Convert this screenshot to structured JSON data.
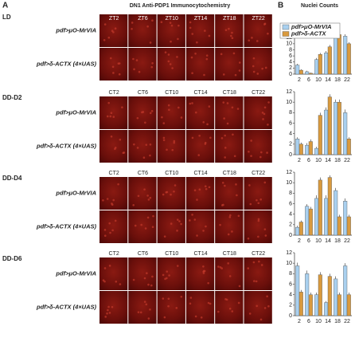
{
  "panel_a": {
    "label": "A",
    "title": "DN1 Anti-PDP1 Immunocytochemistry",
    "sections": [
      {
        "name": "LD",
        "times": [
          "ZT2",
          "ZT6",
          "ZT10",
          "ZT14",
          "ZT18",
          "ZT22"
        ],
        "rows": [
          "pdf>μO-MrVIA",
          "pdf>δ-ACTX (4×UAS)"
        ]
      },
      {
        "name": "DD-D2",
        "times": [
          "CT2",
          "CT6",
          "CT10",
          "CT14",
          "CT18",
          "CT22"
        ],
        "rows": [
          "pdf>μO-MrVIA",
          "pdf>δ-ACTX (4×UAS)"
        ]
      },
      {
        "name": "DD-D4",
        "times": [
          "CT2",
          "CT6",
          "CT10",
          "CT14",
          "CT18",
          "CT22"
        ],
        "rows": [
          "pdf>μO-MrVIA",
          "pdf>δ-ACTX (4×UAS)"
        ]
      },
      {
        "name": "DD-D6",
        "times": [
          "CT2",
          "CT6",
          "CT10",
          "CT14",
          "CT18",
          "CT22"
        ],
        "rows": [
          "pdf>μO-MrVIA",
          "pdf>δ-ACTX (4×UAS)"
        ]
      }
    ]
  },
  "panel_b": {
    "label": "B",
    "title": "Nuclei Counts"
  },
  "chart_data": [
    {
      "type": "bar",
      "categories": [
        "2",
        "6",
        "10",
        "14",
        "18",
        "22"
      ],
      "ylim": [
        0,
        16
      ],
      "yticks": [
        0,
        2,
        4,
        6,
        8,
        10,
        12,
        14,
        16
      ],
      "legend": "top-left",
      "series": [
        {
          "name": "pdf>μO-MrVIA",
          "color": "#a9d0ef",
          "values": [
            3,
            0.8,
            4.8,
            7,
            14,
            12.5
          ],
          "errors": [
            0.4,
            0.3,
            0.5,
            0.6,
            0.5,
            0.6
          ]
        },
        {
          "name": "pdf>δ-ACTX",
          "color": "#d99a3e",
          "values": [
            1.3,
            0.3,
            6.5,
            9,
            13,
            10
          ],
          "errors": [
            0.3,
            0.2,
            0.5,
            0.6,
            0.6,
            0.5
          ]
        }
      ]
    },
    {
      "type": "bar",
      "categories": [
        "2",
        "6",
        "10",
        "14",
        "18",
        "22"
      ],
      "ylim": [
        0,
        12
      ],
      "yticks": [
        0,
        2,
        4,
        6,
        8,
        10,
        12
      ],
      "series": [
        {
          "color": "#a9d0ef",
          "values": [
            3,
            1.8,
            1.2,
            8.5,
            10,
            8
          ],
          "errors": [
            0.3,
            0.4,
            0.3,
            0.5,
            0.5,
            0.6
          ]
        },
        {
          "color": "#d99a3e",
          "values": [
            2,
            2.5,
            7.5,
            11,
            10,
            3
          ],
          "errors": [
            0.3,
            0.4,
            0.5,
            0.5,
            0.5,
            0.3
          ]
        }
      ]
    },
    {
      "type": "bar",
      "categories": [
        "2",
        "6",
        "10",
        "14",
        "18",
        "22"
      ],
      "ylim": [
        0,
        12
      ],
      "yticks": [
        0,
        2,
        4,
        6,
        8,
        10,
        12
      ],
      "series": [
        {
          "color": "#a9d0ef",
          "values": [
            1.5,
            5.5,
            7,
            7,
            8.5,
            6.5
          ],
          "errors": [
            0.3,
            0.4,
            0.6,
            0.6,
            0.5,
            0.5
          ]
        },
        {
          "color": "#d99a3e",
          "values": [
            2.5,
            5,
            10.5,
            11,
            3.5,
            3.5
          ],
          "errors": [
            0.3,
            0.4,
            0.5,
            0.4,
            0.4,
            0.4
          ]
        }
      ]
    },
    {
      "type": "bar",
      "categories": [
        "2",
        "6",
        "10",
        "14",
        "18",
        "22"
      ],
      "ylim": [
        0,
        12
      ],
      "yticks": [
        0,
        2,
        4,
        6,
        8,
        10,
        12
      ],
      "series": [
        {
          "color": "#a9d0ef",
          "values": [
            9.5,
            8,
            4,
            2.5,
            7,
            9.5
          ],
          "errors": [
            0.6,
            0.6,
            0.4,
            0.3,
            0.5,
            0.5
          ]
        },
        {
          "color": "#d99a3e",
          "values": [
            4.5,
            4,
            7.8,
            7.5,
            4,
            4
          ],
          "errors": [
            0.4,
            0.4,
            0.5,
            0.5,
            0.4,
            0.4
          ]
        }
      ]
    }
  ]
}
